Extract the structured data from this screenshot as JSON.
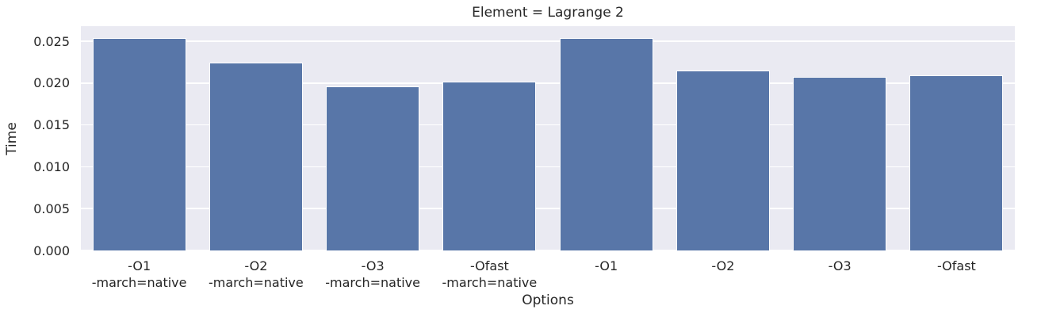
{
  "chart_data": {
    "type": "bar",
    "title": "Element = Lagrange 2",
    "xlabel": "Options",
    "ylabel": "Time",
    "categories": [
      "-O1\n-march=native",
      "-O2\n-march=native",
      "-O3\n-march=native",
      "-Ofast\n-march=native",
      "-O1",
      "-O2",
      "-O3",
      "-Ofast"
    ],
    "values": [
      0.0254,
      0.0224,
      0.0196,
      0.0202,
      0.0254,
      0.0215,
      0.0207,
      0.0209
    ],
    "ylim": [
      0,
      0.0268
    ],
    "yticks": [
      0,
      0.005,
      0.01,
      0.015,
      0.02,
      0.025
    ],
    "ytick_labels": [
      "0.000",
      "0.005",
      "0.010",
      "0.015",
      "0.020",
      "0.025"
    ],
    "grid": true,
    "legend": null,
    "bar_width_fraction": 0.8,
    "colors": {
      "bar": "#5876a8",
      "bar_edge": "#ffffff",
      "plot_background": "#eaeaf2",
      "gridline": "#ffffff",
      "figure_background": "#ffffff",
      "text": "#262626"
    }
  }
}
